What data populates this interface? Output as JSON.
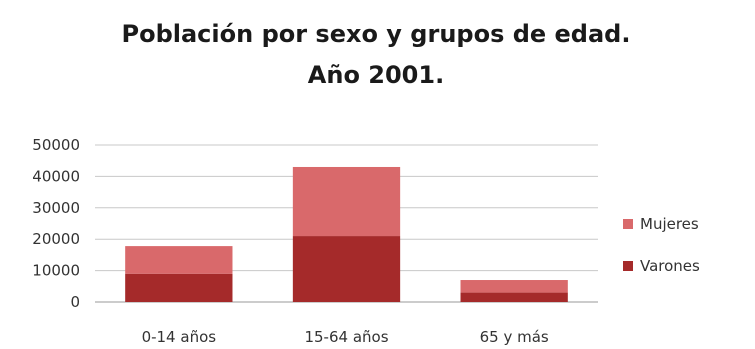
{
  "chart_data": {
    "type": "bar",
    "stacked": true,
    "title": [
      "Población por sexo y grupos de edad.",
      "Año 2001."
    ],
    "categories": [
      "0-14 años",
      "15-64 años",
      "65 y más"
    ],
    "series": [
      {
        "name": "Varones",
        "values": [
          9000,
          21000,
          3000
        ],
        "color": "#a52a2a"
      },
      {
        "name": "Mujeres",
        "values": [
          8800,
          22000,
          4000
        ],
        "color": "#d9696b"
      }
    ],
    "ylim": [
      0,
      50000
    ],
    "yticks": [
      "0",
      "10000",
      "20000",
      "30000",
      "40000",
      "50000"
    ],
    "grid": true,
    "legend": "right",
    "legend_order": [
      "Mujeres",
      "Varones"
    ]
  }
}
